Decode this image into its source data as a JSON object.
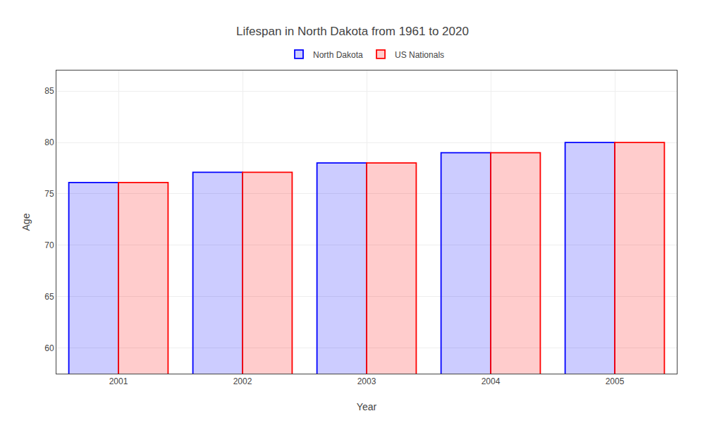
{
  "chart_data": {
    "type": "bar",
    "title": "Lifespan in North Dakota from 1961 to 2020",
    "xlabel": "Year",
    "ylabel": "Age",
    "categories": [
      "2001",
      "2002",
      "2003",
      "2004",
      "2005"
    ],
    "series": [
      {
        "name": "North Dakota",
        "color": "#0000ff",
        "values": [
          76.1,
          77.1,
          78.0,
          79.0,
          80.0
        ]
      },
      {
        "name": "US Nationals",
        "color": "#ff0000",
        "values": [
          76.1,
          77.1,
          78.0,
          79.0,
          80.0
        ]
      }
    ],
    "ylim": [
      57.5,
      87
    ],
    "yticks": [
      60,
      65,
      70,
      75,
      80,
      85
    ],
    "grid": true,
    "legend": "top"
  }
}
